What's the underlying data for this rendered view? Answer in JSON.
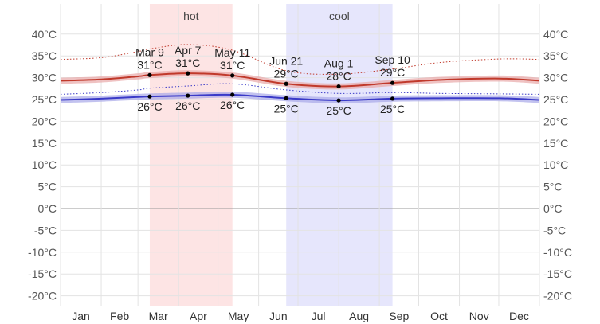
{
  "chart_data": {
    "type": "line",
    "x_unit": "day-of-year",
    "ylim": [
      -23,
      43
    ],
    "y_ticks": [
      40,
      35,
      30,
      25,
      20,
      15,
      10,
      5,
      0,
      -5,
      -10,
      -15,
      -20
    ],
    "y_tick_labels": [
      "40°C",
      "35°C",
      "30°C",
      "25°C",
      "20°C",
      "15°C",
      "10°C",
      "5°C",
      "0°C",
      "-5°C",
      "-10°C",
      "-15°C",
      "-20°C"
    ],
    "x_labels": [
      "Jan",
      "Feb",
      "Mar",
      "Apr",
      "May",
      "Jun",
      "Jul",
      "Aug",
      "Sep",
      "Oct",
      "Nov",
      "Dec"
    ],
    "grid": true,
    "colors": {
      "high": "#c0392b",
      "high_band": "#e8a8a8",
      "low": "#3a3ac8",
      "low_band": "#a8a8e8",
      "hot_band": "#fde4e4",
      "cool_band": "#e6e6fc",
      "zero_line": "#999999",
      "grid": "#e3e3e3"
    },
    "bands": [
      {
        "label": "hot",
        "start": 68,
        "end": 131
      },
      {
        "label": "cool",
        "start": 172,
        "end": 253
      }
    ],
    "series": [
      {
        "key": "high",
        "x": [
          0,
          31,
          59,
          68,
          97,
          131,
          172,
          212,
          253,
          290,
          335,
          365
        ],
        "values": [
          29.3,
          29.6,
          30.3,
          30.6,
          31.0,
          30.5,
          28.6,
          28.0,
          28.8,
          29.5,
          29.8,
          29.3
        ],
        "band_low": [
          28.6,
          28.9,
          29.6,
          29.9,
          30.3,
          29.8,
          27.9,
          27.3,
          28.1,
          28.8,
          29.1,
          28.6
        ],
        "band_high": [
          30.0,
          30.3,
          31.0,
          31.3,
          31.7,
          31.2,
          29.3,
          28.7,
          29.5,
          30.2,
          30.5,
          30.0
        ],
        "dotted": [
          34.2,
          34.6,
          36.0,
          36.6,
          37.6,
          36.3,
          31.6,
          30.8,
          32.0,
          33.5,
          34.3,
          34.2
        ]
      },
      {
        "key": "low",
        "x": [
          0,
          31,
          59,
          68,
          97,
          131,
          172,
          212,
          253,
          290,
          335,
          365
        ],
        "values": [
          24.9,
          25.2,
          25.6,
          25.7,
          25.9,
          26.1,
          25.3,
          24.8,
          25.2,
          25.3,
          25.3,
          24.9
        ],
        "band_low": [
          24.2,
          24.5,
          24.9,
          25.0,
          25.2,
          25.4,
          24.6,
          24.1,
          24.5,
          24.6,
          24.6,
          24.2
        ],
        "band_high": [
          25.6,
          25.9,
          26.3,
          26.4,
          26.6,
          26.8,
          26.0,
          25.5,
          25.9,
          26.0,
          26.0,
          25.6
        ],
        "dotted": [
          26.2,
          26.6,
          27.2,
          27.6,
          28.1,
          28.6,
          27.2,
          26.4,
          26.6,
          26.4,
          26.3,
          26.2
        ]
      }
    ],
    "annotations": [
      {
        "x": 68,
        "y": 30.6,
        "date": "Mar 9",
        "value": "31°C",
        "placement": "above"
      },
      {
        "x": 97,
        "y": 31.0,
        "date": "Apr 7",
        "value": "31°C",
        "placement": "above"
      },
      {
        "x": 131,
        "y": 30.5,
        "date": "May 11",
        "value": "31°C",
        "placement": "above"
      },
      {
        "x": 172,
        "y": 28.6,
        "date": "Jun 21",
        "value": "29°C",
        "placement": "above"
      },
      {
        "x": 212,
        "y": 28.0,
        "date": "Aug 1",
        "value": "28°C",
        "placement": "above"
      },
      {
        "x": 253,
        "y": 28.8,
        "date": "Sep 10",
        "value": "29°C",
        "placement": "above"
      },
      {
        "x": 68,
        "y": 25.7,
        "value": "26°C",
        "placement": "below"
      },
      {
        "x": 97,
        "y": 25.9,
        "value": "26°C",
        "placement": "below"
      },
      {
        "x": 131,
        "y": 26.1,
        "value": "26°C",
        "placement": "below"
      },
      {
        "x": 172,
        "y": 25.3,
        "value": "25°C",
        "placement": "below"
      },
      {
        "x": 212,
        "y": 24.8,
        "value": "25°C",
        "placement": "below"
      },
      {
        "x": 253,
        "y": 25.2,
        "value": "25°C",
        "placement": "below"
      }
    ]
  }
}
